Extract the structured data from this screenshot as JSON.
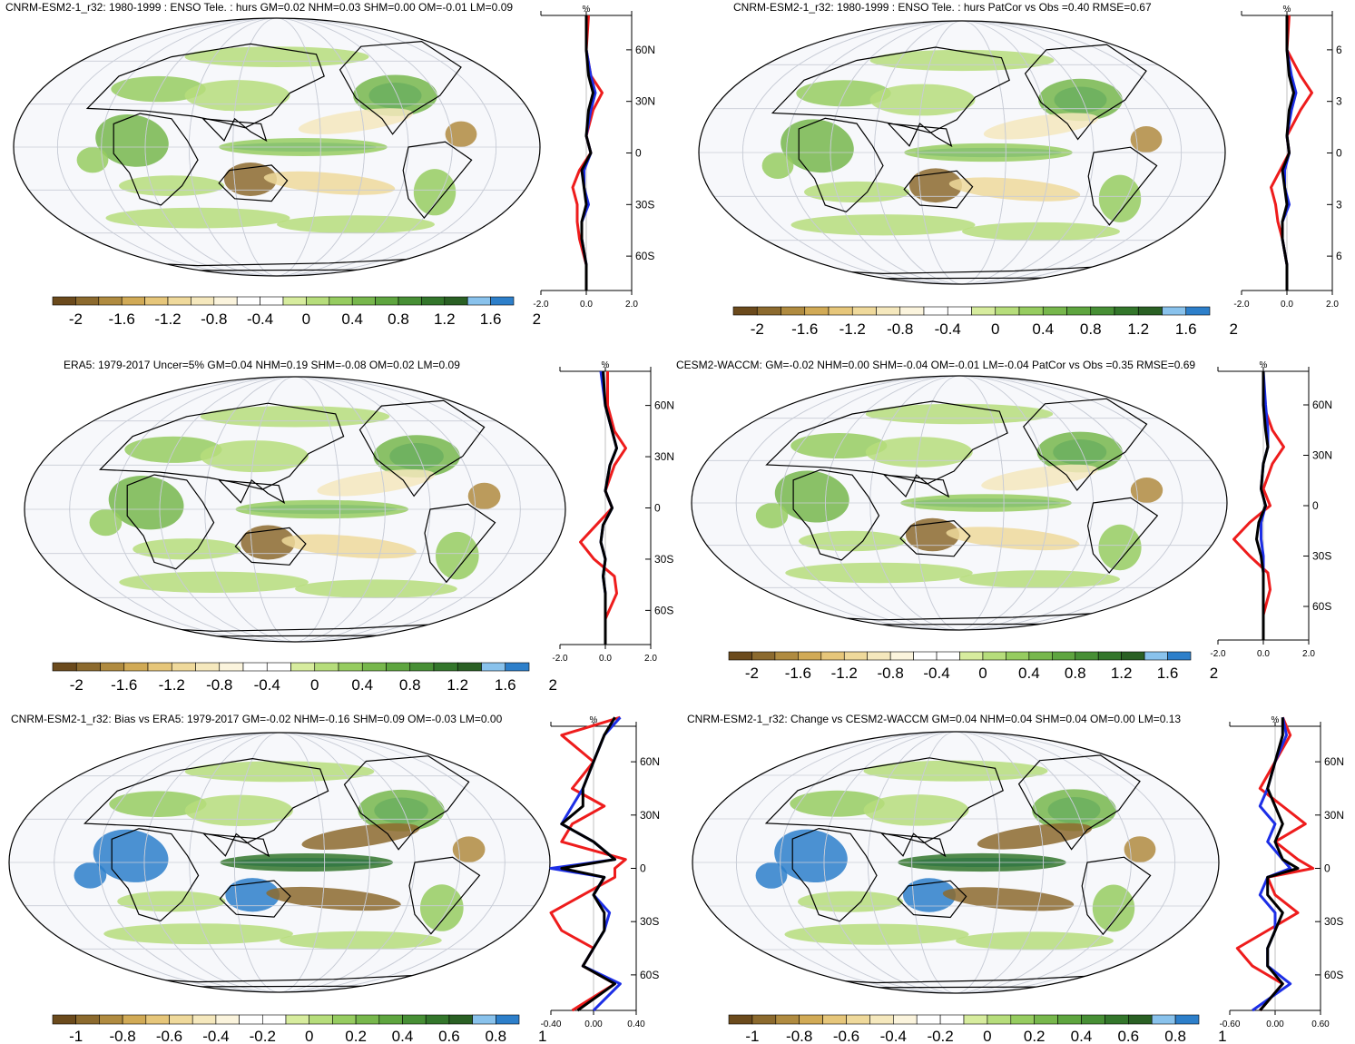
{
  "colors": {
    "scale10": [
      "#6b4a1c",
      "#8c6a2e",
      "#b08b40",
      "#d1aa56",
      "#e6c67a",
      "#efd99b",
      "#f5e8bd",
      "#fbf4dd",
      "#ffffff",
      "#ffffff",
      "#d7ec9e",
      "#b6dd7b",
      "#96cc60",
      "#77b74c",
      "#5ea53f",
      "#478f35",
      "#33762b",
      "#2a6024",
      "#89c2ec",
      "#2d7fca"
    ],
    "zonal": {
      "red": "#ee1c1c",
      "blue": "#1c2ee6",
      "black": "#000000"
    },
    "land": "#000000"
  },
  "colorbar_scales": {
    "top": [
      "-2",
      "-1.6",
      "-1.2",
      "-0.8",
      "-0.4",
      "0",
      "0.4",
      "0.8",
      "1.2",
      "1.6",
      "2"
    ],
    "bottom": [
      "-1",
      "-0.8",
      "-0.6",
      "-0.4",
      "-0.2",
      "0",
      "0.2",
      "0.4",
      "0.6",
      "0.8",
      "1"
    ]
  },
  "chart_data": [
    {
      "type": "heatmap",
      "title": "CNRM-ESM2-1_r32: 1980-1999 : ENSO Tele. : hurs GM=0.02 NHM=0.03 SHM=0.00 OM=-0.01 LM=0.09",
      "colorbar_ticks": [
        -2,
        -1.6,
        -1.2,
        -0.8,
        -0.4,
        0,
        0.4,
        0.8,
        1.2,
        1.6,
        2
      ],
      "zonal_mean": {
        "unit": "%",
        "xlim": [
          -2.0,
          2.0
        ],
        "xticks": [
          "-2.0",
          "0.0",
          "2.0"
        ],
        "lat_ticks": [
          "60N",
          "30N",
          "0",
          "30S",
          "60S"
        ],
        "series": [
          {
            "color": "red",
            "lat": [
              80,
              60,
              45,
              35,
              25,
              10,
              0,
              -10,
              -20,
              -30,
              -40,
              -50,
              -65,
              -80
            ],
            "values": [
              0.1,
              0.0,
              0.2,
              0.7,
              0.3,
              0.0,
              0.2,
              -0.3,
              -0.6,
              -0.4,
              -0.4,
              -0.3,
              0.0,
              0.0
            ]
          },
          {
            "color": "blue",
            "lat": [
              80,
              60,
              45,
              35,
              25,
              10,
              0,
              -10,
              -20,
              -30,
              -40,
              -50,
              -65,
              -80
            ],
            "values": [
              0.0,
              0.0,
              0.2,
              0.4,
              0.2,
              0.0,
              0.2,
              -0.1,
              -0.1,
              0.1,
              -0.2,
              -0.2,
              0.0,
              0.0
            ]
          },
          {
            "color": "black",
            "lat": [
              80,
              60,
              45,
              35,
              25,
              10,
              0,
              -10,
              -20,
              -30,
              -40,
              -50,
              -65,
              -80
            ],
            "values": [
              0.0,
              0.0,
              0.1,
              0.3,
              0.1,
              0.0,
              0.2,
              -0.2,
              -0.1,
              0.0,
              -0.2,
              -0.2,
              0.0,
              0.0
            ]
          }
        ]
      }
    },
    {
      "type": "heatmap",
      "title": "CNRM-ESM2-1_r32: 1980-1999 : ENSO Tele. : hurs PatCor vs Obs =0.40 RMSE=0.67",
      "colorbar_ticks": [
        -2,
        -1.6,
        -1.2,
        -0.8,
        -0.4,
        0,
        0.4,
        0.8,
        1.2,
        1.6,
        2
      ],
      "zonal_mean": {
        "unit": "%",
        "xlim": [
          -2.0,
          2.0
        ],
        "xticks": [
          "-2.0",
          "0.0",
          "2.0"
        ],
        "lat_ticks": [
          "6",
          "3",
          "0",
          "3",
          "6"
        ],
        "series": [
          {
            "color": "red",
            "lat": [
              80,
              60,
              45,
              35,
              25,
              10,
              0,
              -10,
              -20,
              -30,
              -40,
              -50,
              -65,
              -80
            ],
            "values": [
              0.1,
              0.0,
              0.6,
              1.1,
              0.6,
              0.0,
              0.1,
              -0.3,
              -0.7,
              -0.5,
              -0.4,
              -0.2,
              0.0,
              0.0
            ]
          },
          {
            "color": "blue",
            "lat": [
              80,
              60,
              45,
              35,
              25,
              10,
              0,
              -10,
              -20,
              -30,
              -40,
              -50,
              -65,
              -80
            ],
            "values": [
              0.0,
              0.0,
              0.2,
              0.4,
              0.2,
              0.0,
              0.1,
              -0.1,
              -0.1,
              0.1,
              -0.2,
              -0.2,
              0.0,
              0.0
            ]
          },
          {
            "color": "black",
            "lat": [
              80,
              60,
              45,
              35,
              25,
              10,
              0,
              -10,
              -20,
              -30,
              -40,
              -50,
              -65,
              -80
            ],
            "values": [
              0.0,
              0.0,
              0.1,
              0.3,
              0.1,
              0.0,
              0.1,
              -0.2,
              -0.1,
              0.0,
              -0.2,
              -0.2,
              0.0,
              0.0
            ]
          }
        ]
      }
    },
    {
      "type": "heatmap",
      "title": "ERA5: 1979-2017 Uncer=5% GM=0.04 NHM=0.19 SHM=-0.08 OM=0.02 LM=0.09",
      "colorbar_ticks": [
        -2,
        -1.6,
        -1.2,
        -0.8,
        -0.4,
        0,
        0.4,
        0.8,
        1.2,
        1.6,
        2
      ],
      "zonal_mean": {
        "unit": "%",
        "xlim": [
          -2.0,
          2.0
        ],
        "xticks": [
          "-2.0",
          "0.0",
          "2.0"
        ],
        "lat_ticks": [
          "60N",
          "30N",
          "0",
          "30S",
          "60S"
        ],
        "series": [
          {
            "color": "red",
            "lat": [
              80,
              60,
              45,
              35,
              25,
              10,
              0,
              -10,
              -20,
              -30,
              -40,
              -50,
              -65,
              -80
            ],
            "values": [
              0.1,
              0.1,
              0.4,
              0.9,
              0.4,
              0.0,
              0.3,
              -0.4,
              -1.1,
              -0.5,
              0.4,
              0.5,
              0.0,
              0.0
            ]
          },
          {
            "color": "blue",
            "lat": [
              80,
              60,
              45,
              35,
              25,
              10,
              0,
              -10,
              -20,
              -30,
              -40,
              -50,
              -65,
              -80
            ],
            "values": [
              -0.2,
              0.0,
              0.3,
              0.5,
              0.2,
              0.0,
              0.3,
              -0.1,
              -0.2,
              0.0,
              -0.1,
              0.0,
              0.0,
              0.0
            ]
          },
          {
            "color": "black",
            "lat": [
              80,
              60,
              45,
              35,
              25,
              10,
              0,
              -10,
              -20,
              -30,
              -40,
              -50,
              -65,
              -80
            ],
            "values": [
              -0.1,
              0.0,
              0.3,
              0.5,
              0.2,
              0.0,
              0.3,
              -0.1,
              -0.2,
              0.0,
              -0.1,
              0.0,
              0.0,
              0.0
            ]
          }
        ]
      }
    },
    {
      "type": "heatmap",
      "title": "CESM2-WACCM: GM=-0.02 NHM=0.00 SHM=-0.04 OM=-0.01 LM=-0.04 PatCor vs Obs =0.35 RMSE=0.69",
      "colorbar_ticks": [
        -2,
        -1.6,
        -1.2,
        -0.8,
        -0.4,
        0,
        0.4,
        0.8,
        1.2,
        1.6,
        2
      ],
      "zonal_mean": {
        "unit": "%",
        "xlim": [
          -2.0,
          2.0
        ],
        "xticks": [
          "-2.0",
          "0.0",
          "2.0"
        ],
        "lat_ticks": [
          "60N",
          "30N",
          "0",
          "30S",
          "60S"
        ],
        "series": [
          {
            "color": "red",
            "lat": [
              80,
              60,
              45,
              35,
              25,
              10,
              0,
              -10,
              -20,
              -30,
              -40,
              -50,
              -65,
              -80
            ],
            "values": [
              0.0,
              0.0,
              0.4,
              0.9,
              0.4,
              0.0,
              0.3,
              -0.6,
              -1.3,
              -0.6,
              0.2,
              0.3,
              0.0,
              0.0
            ]
          },
          {
            "color": "blue",
            "lat": [
              80,
              60,
              45,
              35,
              25,
              10,
              0,
              -10,
              -20,
              -30,
              -40,
              -50,
              -65,
              -80
            ],
            "values": [
              0.0,
              0.1,
              0.2,
              0.2,
              0.0,
              -0.1,
              0.1,
              -0.1,
              -0.1,
              0.0,
              0.0,
              0.0,
              0.0,
              0.0
            ]
          },
          {
            "color": "black",
            "lat": [
              80,
              60,
              45,
              35,
              25,
              10,
              0,
              -10,
              -20,
              -30,
              -40,
              -50,
              -65,
              -80
            ],
            "values": [
              0.0,
              0.0,
              0.1,
              0.2,
              0.0,
              -0.1,
              0.1,
              -0.2,
              -0.3,
              -0.1,
              0.0,
              0.0,
              0.0,
              0.0
            ]
          }
        ]
      }
    },
    {
      "type": "heatmap",
      "title": "CNRM-ESM2-1_r32: Bias vs ERA5: 1979-2017 GM=-0.02 NHM=-0.16 SHM=0.09 OM=-0.03 LM=0.00",
      "colorbar_ticks": [
        -1,
        -0.8,
        -0.6,
        -0.4,
        -0.2,
        0,
        0.2,
        0.4,
        0.6,
        0.8,
        1
      ],
      "zonal_mean": {
        "unit": "%",
        "xlim": [
          -0.4,
          0.4
        ],
        "xticks": [
          "-0.40",
          "0.00",
          "0.40"
        ],
        "lat_ticks": [
          "60N",
          "30N",
          "0",
          "30S",
          "60S"
        ],
        "series": [
          {
            "color": "red",
            "lat": [
              85,
              75,
              60,
              45,
              35,
              25,
              15,
              5,
              0,
              -5,
              -15,
              -25,
              -35,
              -45,
              -55,
              -65,
              -80
            ],
            "values": [
              0.25,
              -0.3,
              0.0,
              -0.2,
              0.1,
              -0.2,
              -0.3,
              0.3,
              0.2,
              0.2,
              -0.1,
              -0.4,
              -0.3,
              0.0,
              -0.1,
              0.2,
              -0.2
            ]
          },
          {
            "color": "blue",
            "lat": [
              85,
              75,
              60,
              45,
              35,
              25,
              15,
              5,
              0,
              -5,
              -15,
              -25,
              -35,
              -45,
              -55,
              -65,
              -80
            ],
            "values": [
              0.25,
              0.1,
              0.0,
              -0.1,
              -0.2,
              -0.3,
              0.0,
              0.2,
              -0.4,
              0.1,
              0.0,
              0.15,
              0.1,
              0.0,
              -0.1,
              0.25,
              0.0
            ]
          },
          {
            "color": "black",
            "lat": [
              85,
              75,
              60,
              45,
              35,
              25,
              15,
              5,
              0,
              -5,
              -15,
              -25,
              -35,
              -45,
              -55,
              -65,
              -80
            ],
            "values": [
              0.2,
              0.1,
              0.0,
              -0.1,
              -0.1,
              -0.3,
              0.0,
              0.2,
              -0.3,
              0.1,
              0.0,
              0.1,
              0.1,
              0.0,
              -0.1,
              0.2,
              -0.15
            ]
          }
        ]
      }
    },
    {
      "type": "heatmap",
      "title": "CNRM-ESM2-1_r32: Change vs CESM2-WACCM GM=0.04 NHM=0.04 SHM=0.04 OM=0.00 LM=0.13",
      "colorbar_ticks": [
        -1,
        -0.8,
        -0.6,
        -0.4,
        -0.2,
        0,
        0.2,
        0.4,
        0.6,
        0.8,
        1
      ],
      "zonal_mean": {
        "unit": "%",
        "xlim": [
          -0.6,
          0.6
        ],
        "xticks": [
          "-0.60",
          "0.00",
          "0.60"
        ],
        "lat_ticks": [
          "60N",
          "30N",
          "0",
          "30S",
          "60S"
        ],
        "series": [
          {
            "color": "red",
            "lat": [
              85,
              75,
              60,
              45,
              35,
              25,
              15,
              5,
              0,
              -5,
              -15,
              -25,
              -35,
              -45,
              -55,
              -65,
              -80
            ],
            "values": [
              0.1,
              0.2,
              0.0,
              -0.2,
              0.1,
              0.4,
              0.0,
              0.3,
              0.5,
              -0.1,
              0.0,
              0.3,
              -0.1,
              -0.5,
              -0.3,
              0.1,
              -0.2
            ]
          },
          {
            "color": "blue",
            "lat": [
              85,
              75,
              60,
              45,
              35,
              25,
              15,
              5,
              0,
              -5,
              -15,
              -25,
              -35,
              -45,
              -55,
              -65,
              -80
            ],
            "values": [
              0.1,
              0.15,
              0.0,
              -0.1,
              -0.2,
              0.0,
              -0.1,
              0.1,
              0.2,
              -0.1,
              -0.2,
              0.0,
              0.0,
              -0.1,
              -0.1,
              0.2,
              -0.3
            ]
          },
          {
            "color": "black",
            "lat": [
              85,
              75,
              60,
              45,
              35,
              25,
              15,
              5,
              0,
              -5,
              -15,
              -25,
              -35,
              -45,
              -55,
              -65,
              -80
            ],
            "values": [
              0.1,
              0.1,
              0.0,
              -0.1,
              0.0,
              0.1,
              0.0,
              0.1,
              0.3,
              -0.1,
              -0.1,
              0.1,
              0.0,
              -0.1,
              -0.1,
              0.1,
              -0.2
            ]
          }
        ]
      }
    }
  ]
}
